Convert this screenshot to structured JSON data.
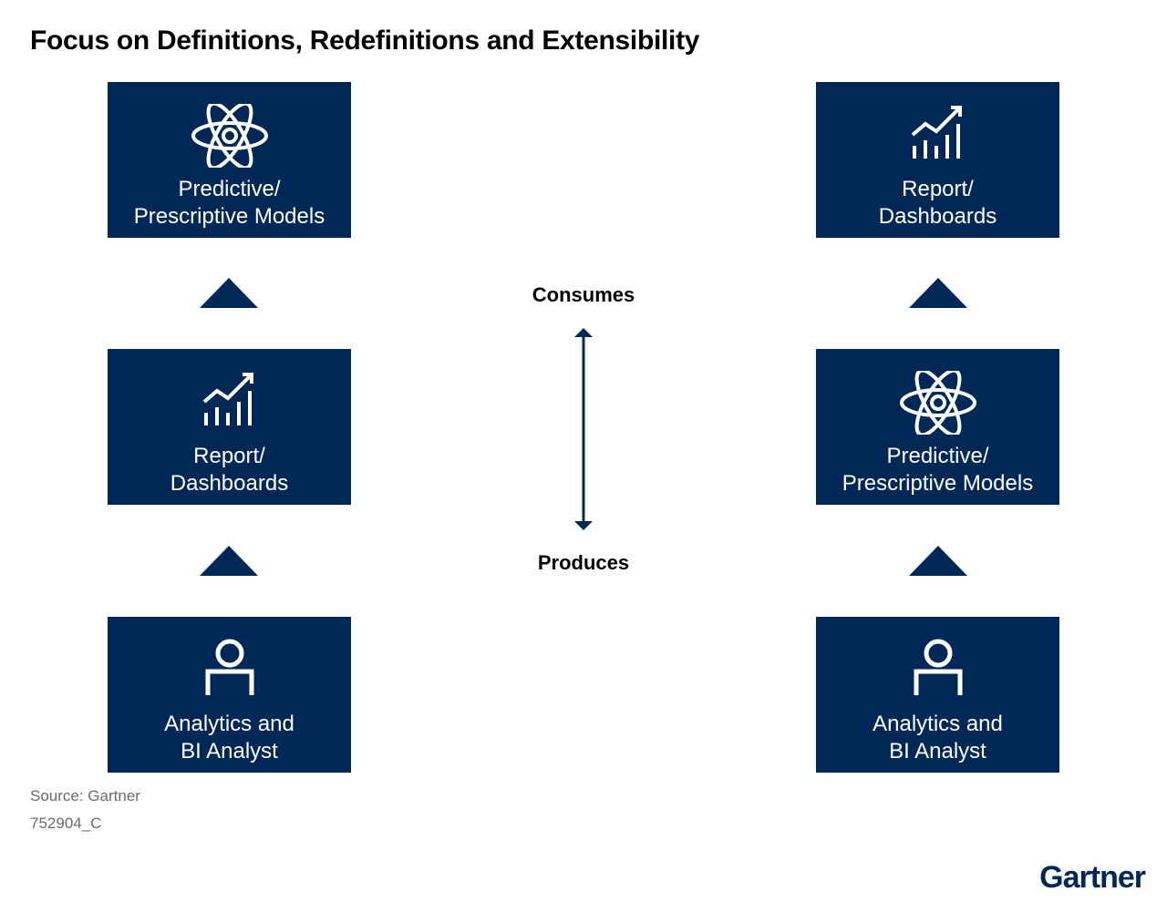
{
  "title": "Focus on Definitions, Redefinitions and Extensibility",
  "left_column": {
    "top": {
      "icon": "atom-icon",
      "line1": "Predictive/",
      "line2": "Prescriptive Models"
    },
    "middle": {
      "icon": "bar-chart-trend-icon",
      "line1": "Report/",
      "line2": "Dashboards"
    },
    "bottom": {
      "icon": "person-icon",
      "line1": "Analytics and",
      "line2": "BI Analyst"
    }
  },
  "right_column": {
    "top": {
      "icon": "bar-chart-trend-icon",
      "line1": "Report/",
      "line2": "Dashboards"
    },
    "middle": {
      "icon": "atom-icon",
      "line1": "Predictive/",
      "line2": "Prescriptive Models"
    },
    "bottom": {
      "icon": "person-icon",
      "line1": "Analytics and",
      "line2": "BI Analyst"
    }
  },
  "axis": {
    "top_label": "Consumes",
    "bottom_label": "Produces"
  },
  "footer": {
    "source": "Source: Gartner",
    "code": "752904_C"
  },
  "logo": "Gartner",
  "colors": {
    "box_fill": "#002856",
    "text_on_box": "#ffffff"
  }
}
